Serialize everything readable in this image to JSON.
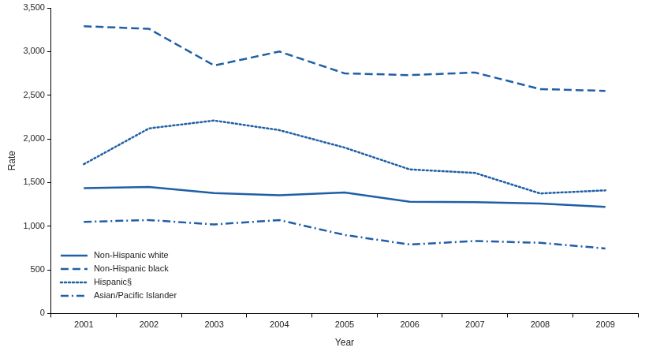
{
  "chart_data": {
    "type": "line",
    "xlabel": "Year",
    "ylabel": "Rate",
    "categories": [
      "2001",
      "2002",
      "2003",
      "2004",
      "2005",
      "2006",
      "2007",
      "2008",
      "2009"
    ],
    "series": [
      {
        "name": "Non-Hispanic white",
        "color": "#1f5fa6",
        "line_style": "solid",
        "values": [
          1435,
          1450,
          1380,
          1355,
          1385,
          1280,
          1275,
          1260,
          1220
        ]
      },
      {
        "name": "Non-Hispanic black",
        "color": "#1f5fa6",
        "line_style": "dashed",
        "values": [
          3290,
          3260,
          2840,
          3000,
          2750,
          2730,
          2760,
          2570,
          2550
        ]
      },
      {
        "name": "Hispanic§",
        "color": "#1f5fa6",
        "line_style": "dotted",
        "values": [
          1710,
          2120,
          2210,
          2100,
          1900,
          1650,
          1610,
          1375,
          1410
        ]
      },
      {
        "name": "Asian/Pacific Islander",
        "color": "#1f5fa6",
        "line_style": "dashdot",
        "values": [
          1050,
          1070,
          1020,
          1070,
          900,
          790,
          830,
          810,
          745
        ]
      }
    ],
    "ylim": [
      0,
      3500
    ],
    "yticks": [
      0,
      500,
      {
        "value": 1000,
        "label": "1,000"
      },
      {
        "value": 1500,
        "label": "1,500"
      },
      {
        "value": 2000,
        "label": "2,000"
      },
      {
        "value": 2500,
        "label": "2,500"
      },
      {
        "value": 3000,
        "label": "3,000"
      },
      {
        "value": 3500,
        "label": "3,500"
      }
    ],
    "grid": false,
    "legend": "lower left"
  }
}
